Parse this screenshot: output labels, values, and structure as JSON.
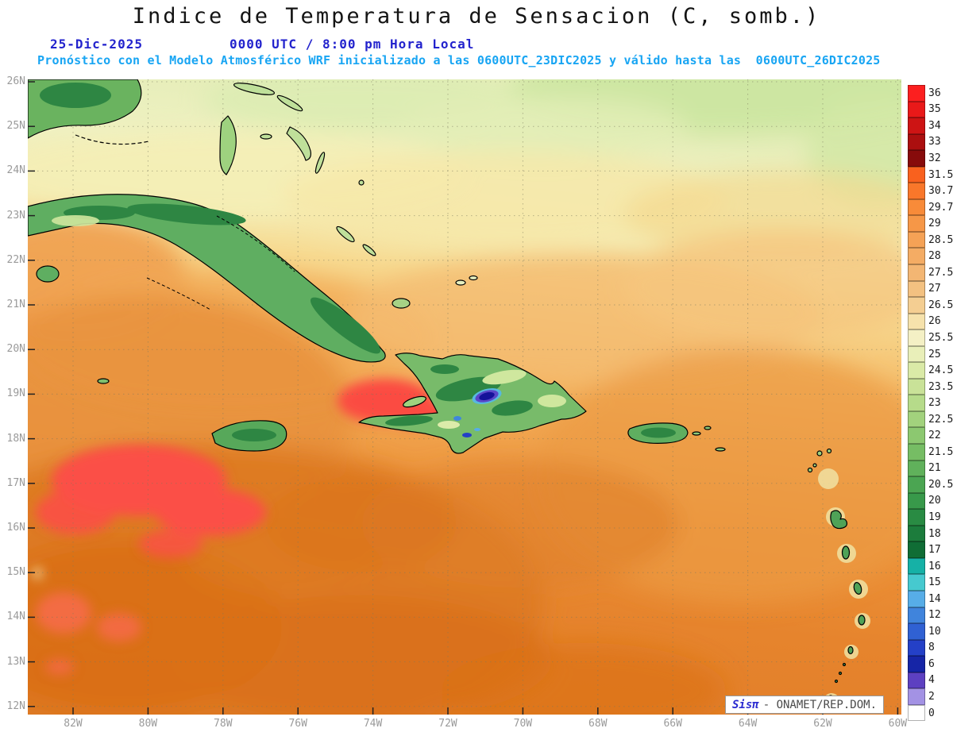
{
  "header": {
    "title": "Indice de Temperatura de Sensacion (C, somb.)",
    "date": "25-Dic-2025",
    "time": "0000 UTC / 8:00 pm Hora Local",
    "forecast": "Pronóstico con el Modelo Atmosférico WRF inicializado a las 0600UTC_23DIC2025 y válido hasta las  0600UTC_26DIC2025"
  },
  "map": {
    "lat_labels": [
      "26N",
      "25N",
      "24N",
      "23N",
      "22N",
      "21N",
      "20N",
      "19N",
      "18N",
      "17N",
      "16N",
      "15N",
      "14N",
      "13N",
      "12N"
    ],
    "lon_labels": [
      "82W",
      "80W",
      "78W",
      "76W",
      "74W",
      "72W",
      "70W",
      "68W",
      "66W",
      "64W",
      "62W",
      "60W"
    ]
  },
  "legend": {
    "entries": [
      {
        "value": "36",
        "color": "#fc1f1f"
      },
      {
        "value": "35",
        "color": "#e91919"
      },
      {
        "value": "34",
        "color": "#cd1414"
      },
      {
        "value": "33",
        "color": "#ab0f0f"
      },
      {
        "value": "32",
        "color": "#870b0b"
      },
      {
        "value": "31.5",
        "color": "#f9611e"
      },
      {
        "value": "30.7",
        "color": "#f9772a"
      },
      {
        "value": "29.7",
        "color": "#f88b39"
      },
      {
        "value": "29",
        "color": "#f69747"
      },
      {
        "value": "28.5",
        "color": "#f5a256"
      },
      {
        "value": "28",
        "color": "#f4ac64"
      },
      {
        "value": "27.5",
        "color": "#f3b673"
      },
      {
        "value": "27",
        "color": "#f3c181"
      },
      {
        "value": "26.5",
        "color": "#f4ce92"
      },
      {
        "value": "26",
        "color": "#f6e2ac"
      },
      {
        "value": "25.5",
        "color": "#f4f0c5"
      },
      {
        "value": "25",
        "color": "#e9efb9"
      },
      {
        "value": "24.5",
        "color": "#daeaa7"
      },
      {
        "value": "23.5",
        "color": "#c9e298"
      },
      {
        "value": "23",
        "color": "#b6db8a"
      },
      {
        "value": "22.5",
        "color": "#a2d27d"
      },
      {
        "value": "22",
        "color": "#8cc870"
      },
      {
        "value": "21.5",
        "color": "#76bd64"
      },
      {
        "value": "21",
        "color": "#60b15b"
      },
      {
        "value": "20.5",
        "color": "#4ba552"
      },
      {
        "value": "20",
        "color": "#38994a"
      },
      {
        "value": "19",
        "color": "#298b43"
      },
      {
        "value": "18",
        "color": "#1c7c3c"
      },
      {
        "value": "17",
        "color": "#106d35"
      },
      {
        "value": "16",
        "color": "#16b1a6"
      },
      {
        "value": "15",
        "color": "#46c9cf"
      },
      {
        "value": "14",
        "color": "#57ade7"
      },
      {
        "value": "12",
        "color": "#4084dc"
      },
      {
        "value": "10",
        "color": "#3061d3"
      },
      {
        "value": "8",
        "color": "#2440c7"
      },
      {
        "value": "6",
        "color": "#1625a6"
      },
      {
        "value": "4",
        "color": "#5d40c1"
      },
      {
        "value": "2",
        "color": "#a392e4"
      },
      {
        "value": "0",
        "color": "#ffffff"
      }
    ]
  },
  "attribution": {
    "brand": "Sisπ",
    "text": "- ONAMET/REP.DOM."
  },
  "colors": {
    "title": "#141414",
    "date_time_blue": "#2323cd",
    "forecast_cyan": "#18a5f3",
    "axis_labels": "#9a9a9a",
    "attribution_brand": "#2a2ad0",
    "attribution_text": "#4a4a4a"
  }
}
